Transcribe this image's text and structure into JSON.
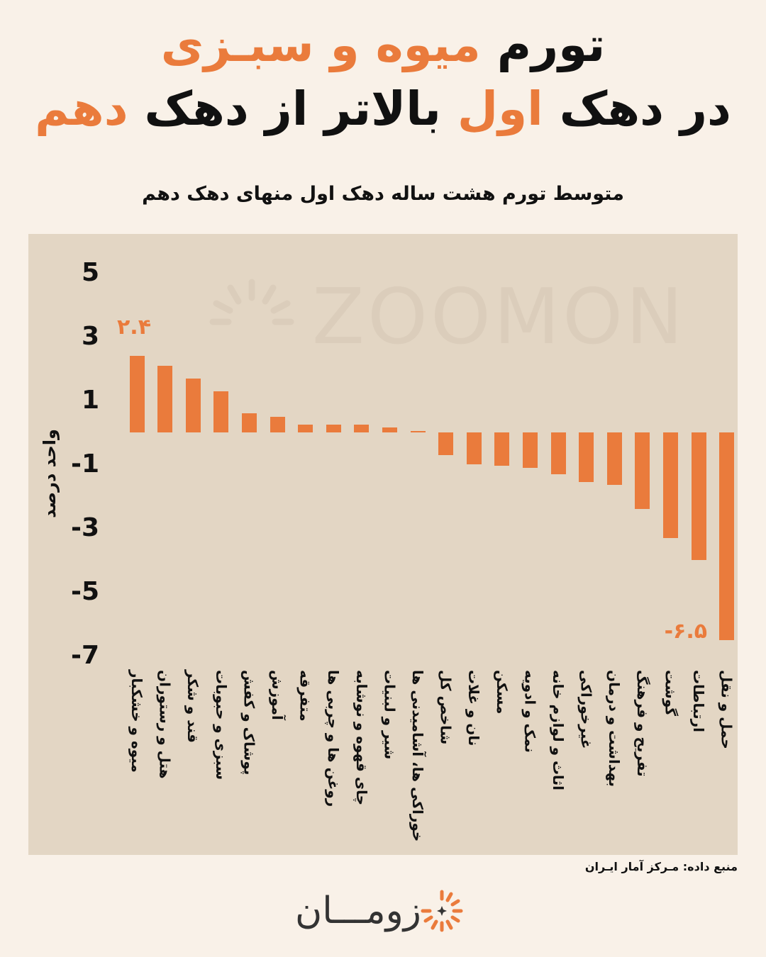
{
  "title": {
    "line1_part1": "تورم ",
    "line1_accent": "میوه و سبـزی",
    "line2_part1": "در دهک ",
    "line2_accent1": "اول",
    "line2_part2": " بالاتر از دهک ",
    "line2_accent2": "دهم"
  },
  "watermark": "ZOOMON",
  "source": "منبع داده: مـرکز آمار ایـران",
  "logo": {
    "name": "زومـــان"
  },
  "colors": {
    "accent": "#ea7b3c",
    "panel": "#e3d6c4",
    "background": "#f9f1e8"
  },
  "chart_data": {
    "type": "bar",
    "title": "متوسط تورم هشت ساله دهک اول منهای دهک دهم",
    "ylabel": "واحد درصد",
    "ylim": [
      -7,
      5
    ],
    "yticks": [
      {
        "v": 5,
        "label": "5"
      },
      {
        "v": 3,
        "label": "3"
      },
      {
        "v": 1,
        "label": "1"
      },
      {
        "v": -1,
        "label": "-1"
      },
      {
        "v": -3,
        "label": "-3"
      },
      {
        "v": -5,
        "label": "-5"
      },
      {
        "v": -7,
        "label": "-7"
      }
    ],
    "categories": [
      "میوه و خشکبار",
      "هتل و رستوران",
      "قند و شکر",
      "سبزی و حبوبات",
      "پوشاک و کفش",
      "آموزش",
      "متفرقه",
      "روغن ها و چربی ها",
      "چای قهوه و نوشابه",
      "شیر و لبنیات",
      "خوراکی ها، آشامیدنی ها",
      "شاخص کل",
      "نان و غلات",
      "مسکن",
      "نمک و ادویه",
      "اثاث و لوازم خانه",
      "غیرخوراکی",
      "بهداشت و درمان",
      "تفریح و فرهنگ",
      "گوشت",
      "ارتباطات",
      "حمل و نقل"
    ],
    "values": [
      2.4,
      2.1,
      1.7,
      1.3,
      0.6,
      0.5,
      0.25,
      0.25,
      0.25,
      0.15,
      0.05,
      -0.7,
      -1.0,
      -1.05,
      -1.1,
      -1.3,
      -1.55,
      -1.65,
      -2.4,
      -3.3,
      -4.0,
      -6.5
    ],
    "data_labels": [
      {
        "index": 0,
        "text": "۲.۴"
      },
      {
        "index": 21,
        "text": "-۶.۵"
      }
    ]
  }
}
